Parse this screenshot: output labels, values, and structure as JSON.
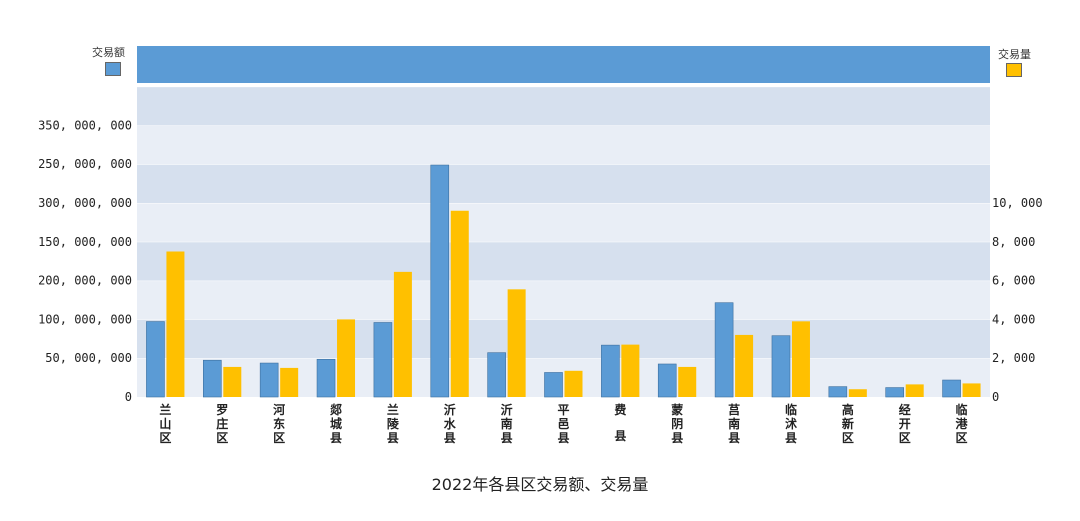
{
  "chart_data": {
    "type": "bar",
    "title": "2022年各县区交易额、交易量",
    "categories": [
      "兰山区",
      "罗庄区",
      "河东区",
      "郯城县",
      "兰陵县",
      "沂水县",
      "沂南县",
      "平邑县",
      "费县",
      "蒙阴县",
      "莒南县",
      "临沭县",
      "高新区",
      "经开区",
      "临港区"
    ],
    "category_lines": [
      [
        "兰",
        "山",
        "区"
      ],
      [
        "罗",
        "庄",
        "区"
      ],
      [
        "河",
        "东",
        "区"
      ],
      [
        "郯",
        "城",
        "县"
      ],
      [
        "兰",
        "陵",
        "县"
      ],
      [
        "沂",
        "水",
        "县"
      ],
      [
        "沂",
        "南",
        "县"
      ],
      [
        "平",
        "邑",
        "县"
      ],
      [
        "费",
        "",
        "县"
      ],
      [
        "蒙",
        "阴",
        "县"
      ],
      [
        "莒",
        "南",
        "县"
      ],
      [
        "临",
        "沭",
        "县"
      ],
      [
        "高",
        "新",
        "区"
      ],
      [
        "经",
        "开",
        "区"
      ],
      [
        "临",
        "港",
        "区"
      ]
    ],
    "series": [
      {
        "name": "交易额",
        "axis": "left",
        "color": "#5b9bd5",
        "values": [
          80000000,
          39000000,
          36000000,
          40000000,
          79000000,
          246000000,
          47000000,
          26000000,
          55000000,
          35000000,
          100000000,
          65000000,
          11000000,
          10000000,
          18000000
        ]
      },
      {
        "name": "交易量",
        "axis": "right",
        "color": "#ffc000",
        "values": [
          7500,
          1550,
          1500,
          4000,
          6450,
          9600,
          5550,
          1350,
          2700,
          1550,
          3200,
          3900,
          400,
          650,
          700
        ]
      }
    ],
    "left_axis": {
      "ticks": [
        "0",
        "50, 000, 000",
        "100, 000, 000",
        "200, 000, 000",
        "150, 000, 000",
        "300, 000, 000",
        "250, 000, 000",
        "350, 000, 000"
      ],
      "ylim": [
        0,
        350000000
      ]
    },
    "right_axis": {
      "ticks": [
        "0",
        "2, 000",
        "4, 000",
        "6, 000",
        "8, 000",
        "10, 000"
      ],
      "ylim": [
        0,
        14000
      ]
    },
    "legend": [
      {
        "label": "交易额",
        "color": "#5b9bd5",
        "placement": "top-left"
      },
      {
        "label": "交易量",
        "color": "#ffc000",
        "placement": "top-right"
      }
    ],
    "grid": true
  }
}
